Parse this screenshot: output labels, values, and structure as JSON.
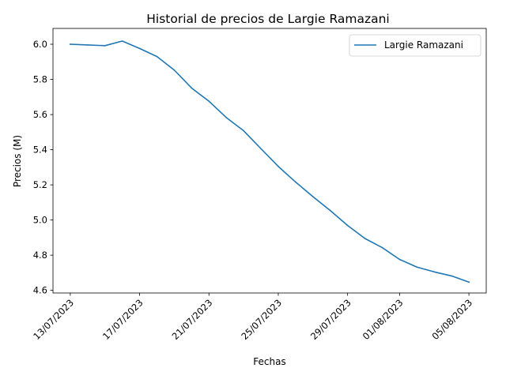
{
  "chart_data": {
    "type": "line",
    "title": "Historial de precios de Largie Ramazani",
    "xlabel": "Fechas",
    "ylabel": "Precios (M)",
    "x_ticks": [
      "13/07/2023",
      "17/07/2023",
      "21/07/2023",
      "25/07/2023",
      "29/07/2023",
      "01/08/2023",
      "05/08/2023"
    ],
    "y_ticks": [
      "4.6",
      "4.8",
      "5.0",
      "5.2",
      "5.4",
      "5.6",
      "5.8",
      "6.0"
    ],
    "ylim": [
      4.585,
      6.09
    ],
    "xlim": [
      "12/07/2023",
      "06/08/2023"
    ],
    "grid": false,
    "legend_position": "upper right",
    "series": [
      {
        "name": "Largie Ramazani",
        "color": "#1f77b4",
        "points": [
          {
            "x": "13/07/2023",
            "y": 6.0
          },
          {
            "x": "14/07/2023",
            "y": 5.996
          },
          {
            "x": "15/07/2023",
            "y": 5.992
          },
          {
            "x": "16/07/2023",
            "y": 6.018
          },
          {
            "x": "17/07/2023",
            "y": 5.976
          },
          {
            "x": "18/07/2023",
            "y": 5.93
          },
          {
            "x": "19/07/2023",
            "y": 5.853
          },
          {
            "x": "20/07/2023",
            "y": 5.751
          },
          {
            "x": "21/07/2023",
            "y": 5.676
          },
          {
            "x": "22/07/2023",
            "y": 5.583
          },
          {
            "x": "23/07/2023",
            "y": 5.508
          },
          {
            "x": "24/07/2023",
            "y": 5.406
          },
          {
            "x": "25/07/2023",
            "y": 5.305
          },
          {
            "x": "26/07/2023",
            "y": 5.216
          },
          {
            "x": "27/07/2023",
            "y": 5.133
          },
          {
            "x": "28/07/2023",
            "y": 5.054
          },
          {
            "x": "29/07/2023",
            "y": 4.969
          },
          {
            "x": "30/07/2023",
            "y": 4.895
          },
          {
            "x": "31/07/2023",
            "y": 4.843
          },
          {
            "x": "01/08/2023",
            "y": 4.776
          },
          {
            "x": "02/08/2023",
            "y": 4.732
          },
          {
            "x": "03/08/2023",
            "y": 4.705
          },
          {
            "x": "04/08/2023",
            "y": 4.682
          },
          {
            "x": "05/08/2023",
            "y": 4.647
          }
        ]
      }
    ]
  }
}
